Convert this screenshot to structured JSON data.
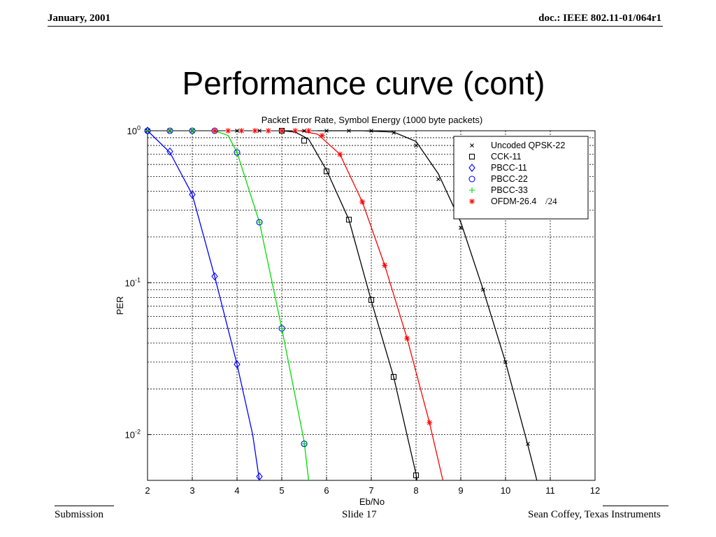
{
  "header": {
    "date": "January, 2001",
    "doc_id": "doc.: IEEE 802.11-01/064r1"
  },
  "slide": {
    "title": "Performance curve (cont)"
  },
  "footer": {
    "left": "Submission",
    "center": "Slide 17",
    "right": "Sean Coffey, Texas Instruments"
  },
  "chart_data": {
    "type": "line",
    "title": "Packet Error Rate, Symbol Energy (1000 byte packets)",
    "xlabel": "Eb/No",
    "ylabel": "PER",
    "xlim": [
      2,
      12
    ],
    "ylim": [
      0.005,
      1
    ],
    "yscale": "log",
    "grid": true,
    "legend_position": "top-right",
    "x_ticks": [
      2,
      3,
      4,
      5,
      6,
      7,
      8,
      9,
      10,
      11,
      12
    ],
    "y_ticks": [
      {
        "value": 1,
        "label_base": "10",
        "label_exp": "0"
      },
      {
        "value": 0.1,
        "label_base": "10",
        "label_exp": "-1"
      },
      {
        "value": 0.01,
        "label_base": "10",
        "label_exp": "-2"
      }
    ],
    "legend_annotation": "/24",
    "series": [
      {
        "name": "Uncoded QPSK-22",
        "color": "#000000",
        "marker": "x",
        "curve": [
          [
            5.8,
            1
          ],
          [
            6.8,
            1
          ],
          [
            7.5,
            0.98
          ],
          [
            8.0,
            0.85
          ],
          [
            8.5,
            0.52
          ],
          [
            9.0,
            0.25
          ],
          [
            9.5,
            0.09
          ],
          [
            10.0,
            0.03
          ],
          [
            10.5,
            0.0085
          ],
          [
            10.7,
            0.005
          ]
        ],
        "markers": [
          [
            2,
            1
          ],
          [
            2.5,
            1
          ],
          [
            3,
            1
          ],
          [
            3.5,
            1
          ],
          [
            4,
            1
          ],
          [
            4.5,
            1
          ],
          [
            5,
            1
          ],
          [
            5.5,
            1
          ],
          [
            6,
            1
          ],
          [
            6.5,
            1
          ],
          [
            7,
            1
          ],
          [
            7.5,
            0.97
          ],
          [
            8,
            0.8
          ],
          [
            8.5,
            0.48
          ],
          [
            9,
            0.23
          ],
          [
            9.5,
            0.09
          ],
          [
            10,
            0.03
          ],
          [
            10.5,
            0.0087
          ]
        ]
      },
      {
        "name": "CCK-11",
        "color": "#000000",
        "marker": "square",
        "curve": [
          [
            5.0,
            1
          ],
          [
            5.3,
            0.98
          ],
          [
            5.6,
            0.88
          ],
          [
            6.0,
            0.55
          ],
          [
            6.5,
            0.26
          ],
          [
            7.0,
            0.076
          ],
          [
            7.5,
            0.024
          ],
          [
            8.0,
            0.0055
          ],
          [
            8.02,
            0.005
          ]
        ],
        "markers": [
          [
            5,
            1
          ],
          [
            5.5,
            0.86
          ],
          [
            6,
            0.54
          ],
          [
            6.5,
            0.26
          ],
          [
            7,
            0.077
          ],
          [
            7.5,
            0.024
          ],
          [
            8,
            0.0054
          ]
        ]
      },
      {
        "name": "PBCC-11",
        "color": "#0000ff",
        "marker": "diamond",
        "curve": [
          [
            2.0,
            1
          ],
          [
            2.5,
            0.72
          ],
          [
            3.0,
            0.38
          ],
          [
            3.5,
            0.11
          ],
          [
            4.0,
            0.029
          ],
          [
            4.35,
            0.01
          ],
          [
            4.5,
            0.005
          ]
        ],
        "markers": [
          [
            2,
            1
          ],
          [
            2.5,
            0.73
          ],
          [
            3,
            0.38
          ],
          [
            3.5,
            0.11
          ],
          [
            4,
            0.029
          ],
          [
            4.5,
            0.0053
          ]
        ]
      },
      {
        "name": "PBCC-22",
        "color": "#0000ff",
        "marker": "circle",
        "markers": [
          [
            2,
            1
          ],
          [
            2.5,
            1
          ],
          [
            3,
            1
          ],
          [
            3.5,
            1
          ],
          [
            4,
            0.72
          ],
          [
            4.5,
            0.25
          ],
          [
            5,
            0.05
          ],
          [
            5.5,
            0.0087
          ]
        ]
      },
      {
        "name": "PBCC-33",
        "color": "#00dd00",
        "marker": "plus",
        "curve": [
          [
            3.5,
            1
          ],
          [
            3.8,
            0.93
          ],
          [
            4.0,
            0.72
          ],
          [
            4.5,
            0.25
          ],
          [
            5.0,
            0.05
          ],
          [
            5.5,
            0.009
          ],
          [
            5.6,
            0.005
          ]
        ],
        "markers": [
          [
            2,
            1
          ],
          [
            2.5,
            1
          ],
          [
            3,
            1
          ],
          [
            3.5,
            1
          ],
          [
            4,
            0.72
          ],
          [
            4.5,
            0.25
          ],
          [
            5,
            0.05
          ],
          [
            5.5,
            0.0087
          ]
        ]
      },
      {
        "name": "OFDM-26.4",
        "color": "#ff0000",
        "marker": "asterisk",
        "curve": [
          [
            5.4,
            1
          ],
          [
            5.8,
            0.95
          ],
          [
            6.3,
            0.7
          ],
          [
            6.8,
            0.34
          ],
          [
            7.3,
            0.13
          ],
          [
            7.8,
            0.043
          ],
          [
            8.3,
            0.012
          ],
          [
            8.6,
            0.005
          ]
        ],
        "markers": [
          [
            3.5,
            1
          ],
          [
            3.8,
            1
          ],
          [
            4.1,
            1
          ],
          [
            4.4,
            1
          ],
          [
            4.7,
            1
          ],
          [
            5.0,
            1
          ],
          [
            5.3,
            1
          ],
          [
            5.6,
            1
          ],
          [
            5.9,
            0.93
          ],
          [
            6.3,
            0.7
          ],
          [
            6.8,
            0.34
          ],
          [
            7.3,
            0.13
          ],
          [
            7.8,
            0.043
          ],
          [
            8.3,
            0.012
          ]
        ]
      }
    ]
  }
}
